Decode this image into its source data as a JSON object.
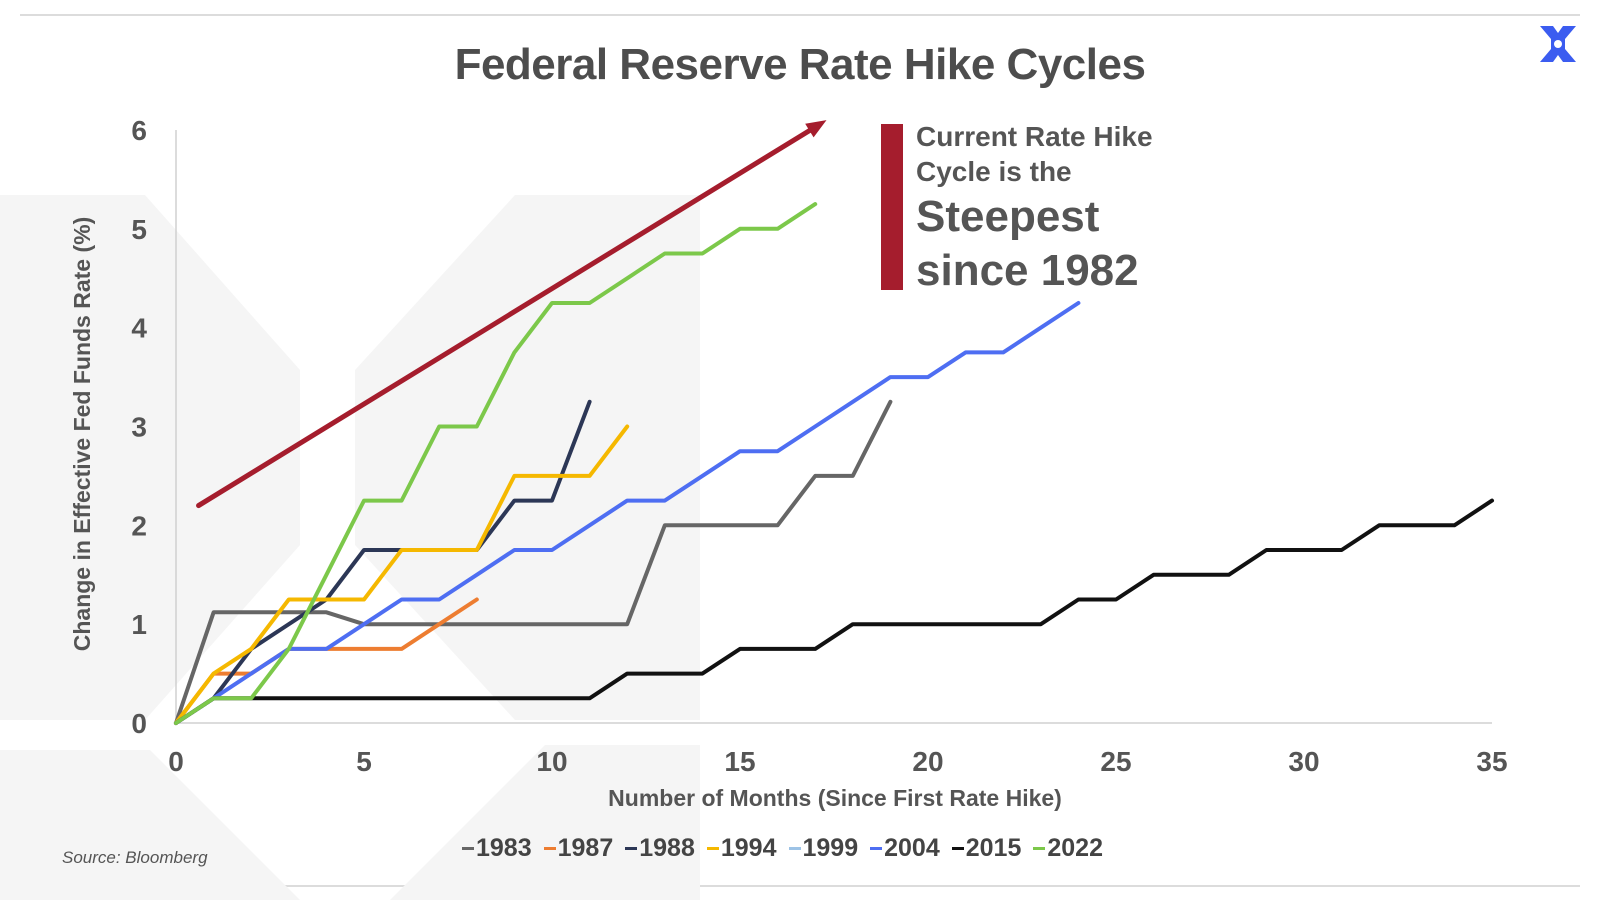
{
  "title": "Federal Reserve Rate Hike Cycles",
  "annotation": {
    "line1": "Current Rate Hike",
    "line2": "Cycle is the",
    "line3": "Steepest",
    "line4": "since 1982",
    "color": "#a51d2d"
  },
  "source": "Source: Bloomberg",
  "logo": "x-logo-icon",
  "chart_data": {
    "type": "line",
    "xlabel": "Number of Months (Since First Rate Hike)",
    "ylabel": "Change in Effective Fed Funds Rate (%)",
    "xlim": [
      0,
      35
    ],
    "ylim": [
      0,
      6
    ],
    "xticks": [
      0,
      5,
      10,
      15,
      20,
      25,
      30,
      35
    ],
    "yticks": [
      0,
      1,
      2,
      3,
      4,
      5,
      6
    ],
    "grid": false,
    "legend_position": "bottom",
    "trend_arrow": {
      "from": [
        0.6,
        2.2
      ],
      "to": [
        17.3,
        6.1
      ],
      "color": "#a51d2d"
    },
    "series": [
      {
        "name": "1983",
        "color": "#666666",
        "points": [
          [
            0,
            0
          ],
          [
            1,
            1.12
          ],
          [
            2,
            1.12
          ],
          [
            3,
            1.12
          ],
          [
            4,
            1.12
          ],
          [
            5,
            1.0
          ],
          [
            6,
            1.0
          ],
          [
            7,
            1.0
          ],
          [
            8,
            1.0
          ],
          [
            9,
            1.0
          ],
          [
            10,
            1.0
          ],
          [
            11,
            1.0
          ],
          [
            12,
            1.0
          ],
          [
            13,
            2.0
          ],
          [
            14,
            2.0
          ],
          [
            15,
            2.0
          ],
          [
            16,
            2.0
          ],
          [
            17,
            2.5
          ],
          [
            18,
            2.5
          ],
          [
            19,
            3.25
          ]
        ]
      },
      {
        "name": "1987",
        "color": "#ed7d31",
        "points": [
          [
            0,
            0
          ],
          [
            1,
            0.5
          ],
          [
            2,
            0.5
          ],
          [
            3,
            0.75
          ],
          [
            4,
            0.75
          ],
          [
            5,
            0.75
          ],
          [
            6,
            0.75
          ],
          [
            7,
            1.0
          ],
          [
            8,
            1.25
          ]
        ]
      },
      {
        "name": "1988",
        "color": "#2c3756",
        "points": [
          [
            0,
            0
          ],
          [
            1,
            0.25
          ],
          [
            2,
            0.75
          ],
          [
            3,
            1.0
          ],
          [
            4,
            1.25
          ],
          [
            5,
            1.75
          ],
          [
            6,
            1.75
          ],
          [
            7,
            1.75
          ],
          [
            8,
            1.75
          ],
          [
            9,
            2.25
          ],
          [
            10,
            2.25
          ],
          [
            11,
            3.25
          ]
        ]
      },
      {
        "name": "1994",
        "color": "#f5b800",
        "points": [
          [
            0,
            0
          ],
          [
            1,
            0.5
          ],
          [
            2,
            0.75
          ],
          [
            3,
            1.25
          ],
          [
            4,
            1.25
          ],
          [
            5,
            1.25
          ],
          [
            6,
            1.75
          ],
          [
            7,
            1.75
          ],
          [
            8,
            1.75
          ],
          [
            9,
            2.5
          ],
          [
            10,
            2.5
          ],
          [
            11,
            2.5
          ],
          [
            12,
            3.0
          ]
        ]
      },
      {
        "name": "1999",
        "color": "#9dc3e6",
        "points": [
          [
            0,
            0
          ],
          [
            1,
            0.25
          ],
          [
            2,
            0.5
          ],
          [
            3,
            0.75
          ],
          [
            4,
            0.75
          ],
          [
            5,
            1.0
          ],
          [
            6,
            1.25
          ],
          [
            7,
            1.25
          ],
          [
            8,
            1.5
          ],
          [
            9,
            1.75
          ],
          [
            10,
            1.75
          ]
        ]
      },
      {
        "name": "2004",
        "color": "#4e6ef2",
        "points": [
          [
            0,
            0
          ],
          [
            1,
            0.25
          ],
          [
            2,
            0.5
          ],
          [
            3,
            0.75
          ],
          [
            4,
            0.75
          ],
          [
            5,
            1.0
          ],
          [
            6,
            1.25
          ],
          [
            7,
            1.25
          ],
          [
            8,
            1.5
          ],
          [
            9,
            1.75
          ],
          [
            10,
            1.75
          ],
          [
            11,
            2.0
          ],
          [
            12,
            2.25
          ],
          [
            13,
            2.25
          ],
          [
            14,
            2.5
          ],
          [
            15,
            2.75
          ],
          [
            16,
            2.75
          ],
          [
            17,
            3.0
          ],
          [
            18,
            3.25
          ],
          [
            19,
            3.5
          ],
          [
            20,
            3.5
          ],
          [
            21,
            3.75
          ],
          [
            22,
            3.75
          ],
          [
            23,
            4.0
          ],
          [
            24,
            4.25
          ]
        ]
      },
      {
        "name": "2015",
        "color": "#111111",
        "points": [
          [
            0,
            0
          ],
          [
            1,
            0.25
          ],
          [
            11,
            0.25
          ],
          [
            12,
            0.5
          ],
          [
            13,
            0.5
          ],
          [
            14,
            0.5
          ],
          [
            15,
            0.75
          ],
          [
            16,
            0.75
          ],
          [
            17,
            0.75
          ],
          [
            18,
            1.0
          ],
          [
            19,
            1.0
          ],
          [
            20,
            1.0
          ],
          [
            21,
            1.0
          ],
          [
            22,
            1.0
          ],
          [
            23,
            1.0
          ],
          [
            24,
            1.25
          ],
          [
            25,
            1.25
          ],
          [
            26,
            1.5
          ],
          [
            27,
            1.5
          ],
          [
            28,
            1.5
          ],
          [
            29,
            1.75
          ],
          [
            30,
            1.75
          ],
          [
            31,
            1.75
          ],
          [
            32,
            2.0
          ],
          [
            33,
            2.0
          ],
          [
            34,
            2.0
          ],
          [
            35,
            2.25
          ]
        ]
      },
      {
        "name": "2022",
        "color": "#7cc84a",
        "points": [
          [
            0,
            0
          ],
          [
            1,
            0.25
          ],
          [
            2,
            0.25
          ],
          [
            3,
            0.75
          ],
          [
            4,
            1.5
          ],
          [
            5,
            2.25
          ],
          [
            6,
            2.25
          ],
          [
            7,
            3.0
          ],
          [
            8,
            3.0
          ],
          [
            9,
            3.75
          ],
          [
            10,
            4.25
          ],
          [
            11,
            4.25
          ],
          [
            12,
            4.5
          ],
          [
            13,
            4.75
          ],
          [
            14,
            4.75
          ],
          [
            15,
            5.0
          ],
          [
            16,
            5.0
          ],
          [
            17,
            5.25
          ]
        ]
      }
    ]
  }
}
